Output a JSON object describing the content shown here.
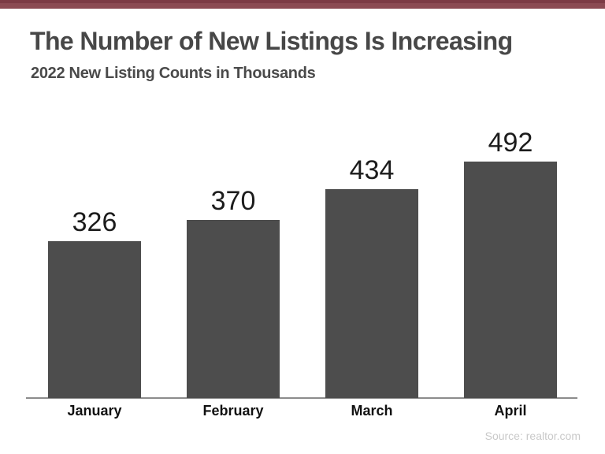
{
  "page": {
    "title": "The Number of New Listings Is Increasing",
    "subtitle": "2022 New Listing Counts in Thousands",
    "source": "Source: realtor.com"
  },
  "colors": {
    "accent_stripe": "#8B4A52",
    "accent_stripe_dark": "#7C3A44",
    "bar": "#4D4D4D",
    "title_text": "#474747",
    "subtitle_text": "#4A4A4A",
    "value_text": "#1C1C1C",
    "month_text": "#111111",
    "axis_line": "#8C8C8C",
    "source_text": "#C9C9C9"
  },
  "chart_data": {
    "type": "bar",
    "title": "The Number of New Listings Is Increasing",
    "subtitle": "2022 New Listing Counts in Thousands",
    "categories": [
      "January",
      "February",
      "March",
      "April"
    ],
    "values": [
      326,
      370,
      434,
      492
    ],
    "xlabel": "",
    "ylabel": "",
    "ylim": [
      0,
      500
    ],
    "grid": false,
    "legend": false,
    "value_labels_shown": true,
    "bars_start_at_zero": true,
    "source": "Source: realtor.com"
  }
}
